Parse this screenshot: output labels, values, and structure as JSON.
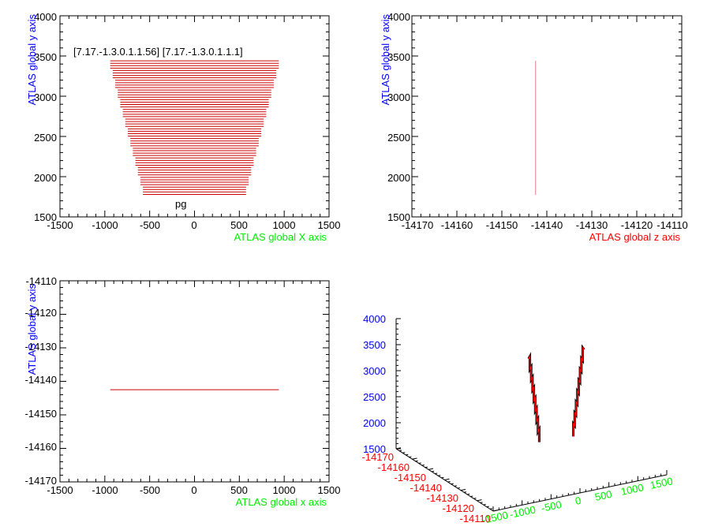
{
  "colors": {
    "x_axis_title": "#00ee00",
    "y_axis_title": "#0000ff",
    "z_axis_title": "#ff0000",
    "data": "#cc0000",
    "frame": "#000000"
  },
  "chart_data": [
    {
      "type": "line",
      "panel": "top-left",
      "xlabel": "ATLAS global X axis",
      "ylabel": "ATLAS global y axis",
      "xlim": [
        -1500,
        1500
      ],
      "ylim": [
        1500,
        4000
      ],
      "xticks": [
        "-1500",
        "-1000",
        "-500",
        "0",
        "500",
        "1000",
        "1500"
      ],
      "yticks": [
        "1500",
        "2000",
        "2500",
        "3000",
        "3500",
        "4000"
      ],
      "annotations": [
        "[7.17.-1.3.0.1.1.56] [7.17.-1.3.0.1.1.1]",
        "pg"
      ],
      "strips": {
        "y_start": 1780,
        "y_end": 3440,
        "count": 56,
        "x_half_width_bottom": 575,
        "x_half_width_top": 940,
        "center_x": 0
      }
    },
    {
      "type": "line",
      "panel": "top-right",
      "xlabel": "ATLAS global z axis",
      "ylabel": "ATLAS global y axis",
      "xlim": [
        -14170,
        -14110
      ],
      "ylim": [
        1500,
        4000
      ],
      "xticks": [
        "-14170",
        "-14160",
        "-14150",
        "-14140",
        "-14130",
        "-14120",
        "-14110"
      ],
      "yticks": [
        "1500",
        "2000",
        "2500",
        "3000",
        "3500",
        "4000"
      ],
      "segment": {
        "x": -14142.5,
        "y_from": 1780,
        "y_to": 3440
      }
    },
    {
      "type": "line",
      "panel": "bottom-left",
      "xlabel": "ATLAS global x axis",
      "ylabel": "ATLAS global y axis",
      "xlim": [
        -1500,
        1500
      ],
      "ylim": [
        -14170,
        -14110
      ],
      "xticks": [
        "-1500",
        "-1000",
        "-500",
        "0",
        "500",
        "1000",
        "1500"
      ],
      "yticks": [
        "-14170",
        "-14160",
        "-14150",
        "-14140",
        "-14130",
        "-14120",
        "-14110"
      ],
      "segment": {
        "y": -14142.5,
        "x_from": -940,
        "x_to": 940
      }
    },
    {
      "type": "line",
      "panel": "bottom-right",
      "title": "",
      "yticks": [
        "1500",
        "2000",
        "2500",
        "3000",
        "3500",
        "4000"
      ],
      "zticks": [
        "-14170",
        "-14160",
        "-14150",
        "-14140",
        "-14130",
        "-14120",
        "-14110"
      ],
      "xticks": [
        "-1500",
        "-1000",
        "-500",
        "0",
        "500",
        "1000",
        "1500"
      ],
      "tracks": [
        {
          "name": "",
          "x_from": -575,
          "x_to": -940,
          "y_from": 1780,
          "y_to": 3440
        },
        {
          "name": "",
          "x_from": 575,
          "x_to": 940,
          "y_from": 1780,
          "y_to": 3440
        }
      ]
    }
  ]
}
